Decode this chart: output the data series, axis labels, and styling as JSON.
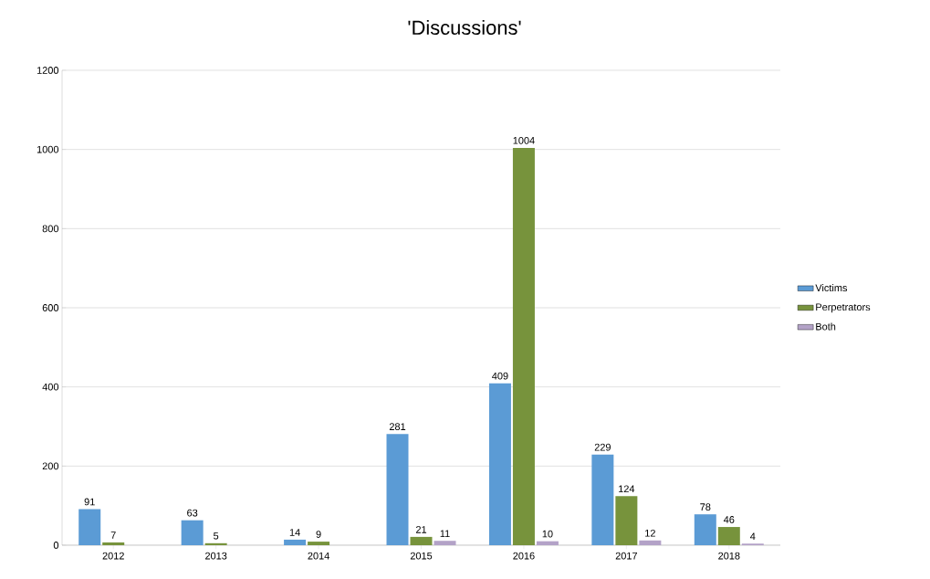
{
  "chart_data": {
    "type": "bar",
    "title": "'Discussions'",
    "categories": [
      "2012",
      "2013",
      "2014",
      "2015",
      "2016",
      "2017",
      "2018"
    ],
    "series": [
      {
        "name": "Victims",
        "color": "#5b9bd5",
        "values": [
          91,
          63,
          14,
          281,
          409,
          229,
          78
        ]
      },
      {
        "name": "Perpetrators",
        "color": "#77933c",
        "values": [
          7,
          5,
          9,
          21,
          1004,
          124,
          46
        ]
      },
      {
        "name": "Both",
        "color": "#b3a2c7",
        "values": [
          null,
          null,
          null,
          11,
          10,
          12,
          4
        ]
      }
    ],
    "ylim": [
      0,
      1200
    ],
    "yticks": [
      0,
      200,
      400,
      600,
      800,
      1000,
      1200
    ],
    "grid": "y",
    "legend": "right",
    "data_labels": true
  }
}
